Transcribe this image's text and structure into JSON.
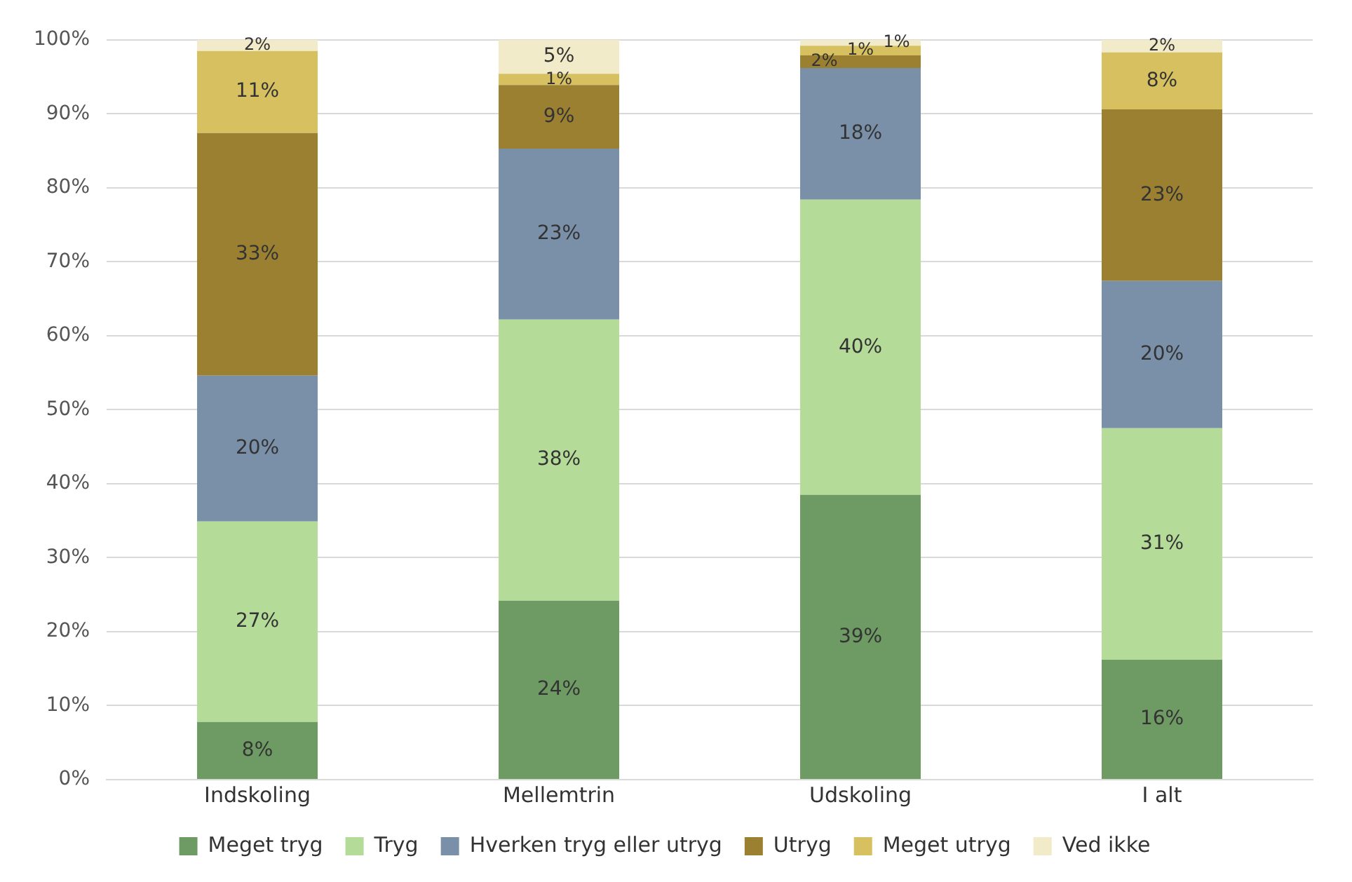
{
  "chart_data": {
    "type": "bar",
    "stacked": true,
    "categories": [
      "Indskoling",
      "Mellemtrin",
      "Udskoling",
      "I alt"
    ],
    "series": [
      {
        "name": "Meget tryg",
        "color": "#6e9a63",
        "values": [
          7.8,
          24.2,
          38.5,
          16.2
        ],
        "value_labels": [
          "8%",
          "24%",
          "39%",
          "16%"
        ]
      },
      {
        "name": "Tryg",
        "color": "#b5db98",
        "values": [
          27.1,
          38.0,
          39.9,
          31.3
        ],
        "value_labels": [
          "27%",
          "38%",
          "40%",
          "31%"
        ]
      },
      {
        "name": "Hverken tryg eller utryg",
        "color": "#7a8fa8",
        "values": [
          19.7,
          23.1,
          17.8,
          19.9
        ],
        "value_labels": [
          "20%",
          "23%",
          "18%",
          "20%"
        ]
      },
      {
        "name": "Utryg",
        "color": "#9b8032",
        "values": [
          32.8,
          8.6,
          1.7,
          23.2
        ],
        "value_labels": [
          "33%",
          "9%",
          "2%",
          "23%"
        ]
      },
      {
        "name": "Meget utryg",
        "color": "#d6c060",
        "values": [
          11.1,
          1.5,
          1.3,
          7.7
        ],
        "value_labels": [
          "11%",
          "1%",
          "1%",
          "8%"
        ]
      },
      {
        "name": "Ved ikke",
        "color": "#f2ebc9",
        "values": [
          1.5,
          4.6,
          0.8,
          1.7
        ],
        "value_labels": [
          "2%",
          "5%",
          "1%",
          "2%"
        ]
      }
    ],
    "ylim": [
      0,
      100
    ],
    "yticks": [
      {
        "value": 0,
        "label": "0%"
      },
      {
        "value": 10,
        "label": "10%"
      },
      {
        "value": 20,
        "label": "20%"
      },
      {
        "value": 30,
        "label": "30%"
      },
      {
        "value": 40,
        "label": "40%"
      },
      {
        "value": 50,
        "label": "50%"
      },
      {
        "value": 60,
        "label": "60%"
      },
      {
        "value": 70,
        "label": "70%"
      },
      {
        "value": 80,
        "label": "80%"
      },
      {
        "value": 90,
        "label": "90%"
      },
      {
        "value": 100,
        "label": "100%"
      }
    ],
    "grid": "y",
    "legend": "bottom"
  }
}
